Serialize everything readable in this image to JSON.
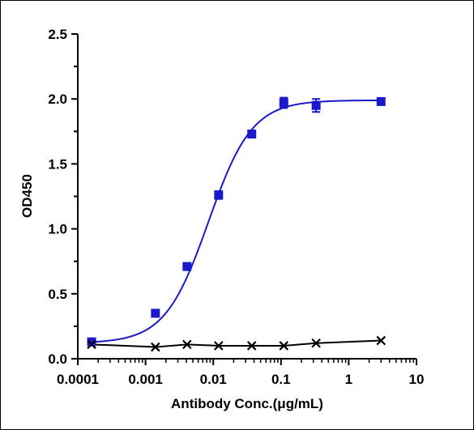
{
  "chart_data": {
    "type": "scatter",
    "title": "",
    "xlabel": "Antibody Conc.(μg/mL)",
    "ylabel": "OD450",
    "x_scale": "log",
    "xlim": [
      0.0001,
      10
    ],
    "ylim": [
      0,
      2.5
    ],
    "x_ticks": [
      "0.0001",
      "0.001",
      "0.01",
      "0.1",
      "1",
      "10"
    ],
    "y_ticks": [
      "0.0",
      "0.5",
      "1.0",
      "1.5",
      "2.0",
      "2.5"
    ],
    "grid": false,
    "legend": "none",
    "series": [
      {
        "marker": "square",
        "color": "#1a1acc",
        "fit": "sigmoidal",
        "points": [
          {
            "x": 0.00016,
            "y": 0.13,
            "err": 0.01
          },
          {
            "x": 0.0014,
            "y": 0.35,
            "err": 0.01
          },
          {
            "x": 0.0041,
            "y": 0.71,
            "err": 0.01
          },
          {
            "x": 0.012,
            "y": 1.26,
            "err": 0.03
          },
          {
            "x": 0.037,
            "y": 1.73,
            "err": 0.01
          },
          {
            "x": 0.11,
            "y": 1.97,
            "err": 0.04
          },
          {
            "x": 0.33,
            "y": 1.95,
            "err": 0.05
          },
          {
            "x": 3.0,
            "y": 1.98,
            "err": 0.01
          }
        ],
        "curve_bottom": 0.12,
        "curve_top": 1.99,
        "curve_ec50": 0.0085,
        "curve_hill": 1.35
      },
      {
        "marker": "x",
        "color": "#000000",
        "fit": "line",
        "points": [
          {
            "x": 0.00016,
            "y": 0.11,
            "err": 0
          },
          {
            "x": 0.0014,
            "y": 0.09,
            "err": 0
          },
          {
            "x": 0.0041,
            "y": 0.11,
            "err": 0
          },
          {
            "x": 0.012,
            "y": 0.1,
            "err": 0
          },
          {
            "x": 0.037,
            "y": 0.1,
            "err": 0
          },
          {
            "x": 0.11,
            "y": 0.1,
            "err": 0
          },
          {
            "x": 0.33,
            "y": 0.12,
            "err": 0
          },
          {
            "x": 3.0,
            "y": 0.14,
            "err": 0
          }
        ]
      }
    ]
  }
}
